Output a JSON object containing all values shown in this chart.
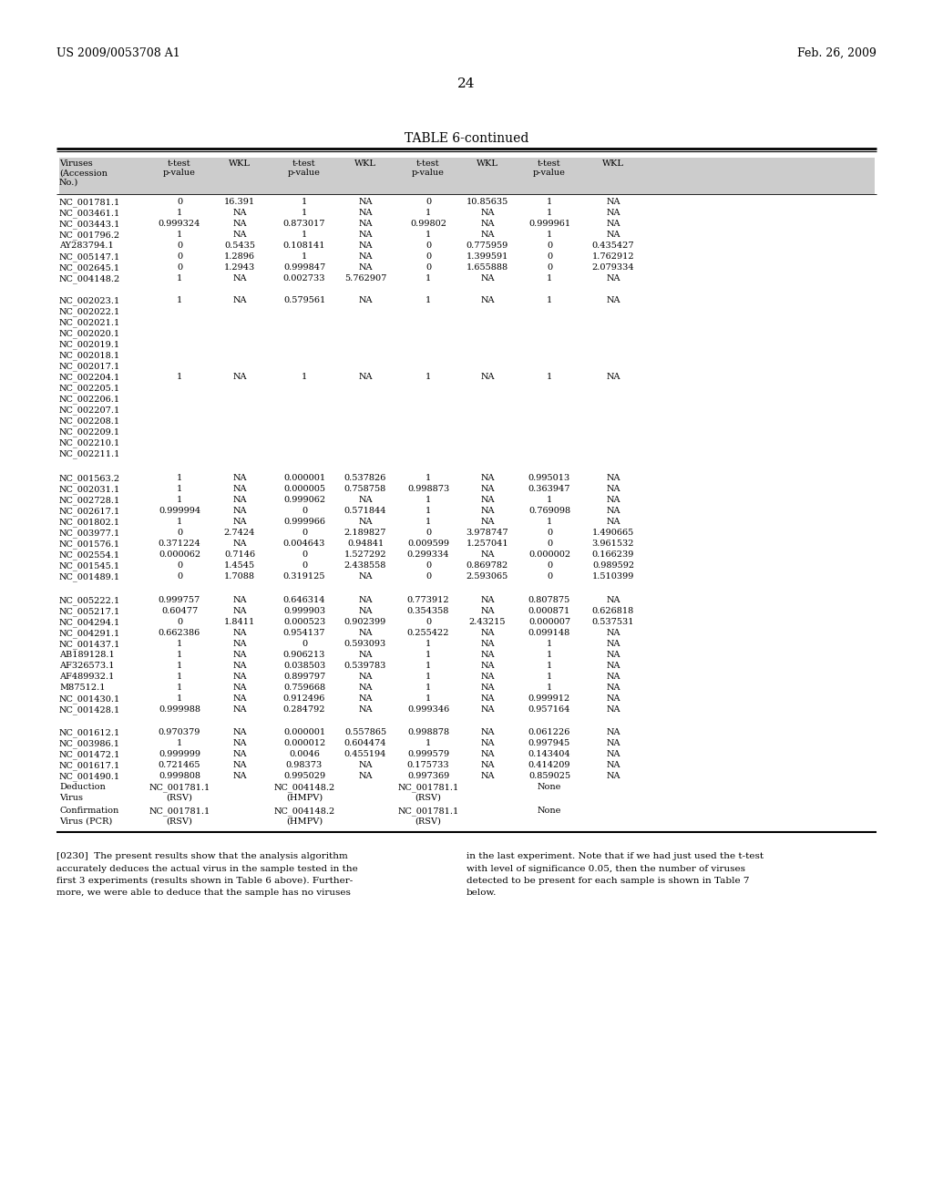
{
  "header_left": "US 2009/0053708 A1",
  "header_right": "Feb. 26, 2009",
  "page_number": "24",
  "table_title": "TABLE 6-continued",
  "sections": [
    {
      "rows": [
        [
          "NC_001781.1",
          "0",
          "16.391",
          "1",
          "NA",
          "0",
          "10.85635",
          "1",
          "NA"
        ],
        [
          "NC_003461.1",
          "1",
          "NA",
          "1",
          "NA",
          "1",
          "NA",
          "1",
          "NA"
        ],
        [
          "NC_003443.1",
          "0.999324",
          "NA",
          "0.873017",
          "NA",
          "0.99802",
          "NA",
          "0.999961",
          "NA"
        ],
        [
          "NC_001796.2",
          "1",
          "NA",
          "1",
          "NA",
          "1",
          "NA",
          "1",
          "NA"
        ],
        [
          "AY283794.1",
          "0",
          "0.5435",
          "0.108141",
          "NA",
          "0",
          "0.775959",
          "0",
          "0.435427"
        ],
        [
          "NC_005147.1",
          "0",
          "1.2896",
          "1",
          "NA",
          "0",
          "1.399591",
          "0",
          "1.762912"
        ],
        [
          "NC_002645.1",
          "0",
          "1.2943",
          "0.999847",
          "NA",
          "0",
          "1.655888",
          "0",
          "2.079334"
        ],
        [
          "NC_004148.2",
          "1",
          "NA",
          "0.002733",
          "5.762907",
          "1",
          "NA",
          "1",
          "NA"
        ]
      ]
    },
    {
      "rows": [
        [
          "NC_002023.1",
          "1",
          "NA",
          "0.579561",
          "NA",
          "1",
          "NA",
          "1",
          "NA"
        ],
        [
          "NC_002022.1",
          "",
          "",
          "",
          "",
          "",
          "",
          "",
          ""
        ],
        [
          "NC_002021.1",
          "",
          "",
          "",
          "",
          "",
          "",
          "",
          ""
        ],
        [
          "NC_002020.1",
          "",
          "",
          "",
          "",
          "",
          "",
          "",
          ""
        ],
        [
          "NC_002019.1",
          "",
          "",
          "",
          "",
          "",
          "",
          "",
          ""
        ],
        [
          "NC_002018.1",
          "",
          "",
          "",
          "",
          "",
          "",
          "",
          ""
        ],
        [
          "NC_002017.1",
          "",
          "",
          "",
          "",
          "",
          "",
          "",
          ""
        ],
        [
          "NC_002204.1",
          "1",
          "NA",
          "1",
          "NA",
          "1",
          "NA",
          "1",
          "NA"
        ],
        [
          "NC_002205.1",
          "",
          "",
          "",
          "",
          "",
          "",
          "",
          ""
        ],
        [
          "NC_002206.1",
          "",
          "",
          "",
          "",
          "",
          "",
          "",
          ""
        ],
        [
          "NC_002207.1",
          "",
          "",
          "",
          "",
          "",
          "",
          "",
          ""
        ],
        [
          "NC_002208.1",
          "",
          "",
          "",
          "",
          "",
          "",
          "",
          ""
        ],
        [
          "NC_002209.1",
          "",
          "",
          "",
          "",
          "",
          "",
          "",
          ""
        ],
        [
          "NC_002210.1",
          "",
          "",
          "",
          "",
          "",
          "",
          "",
          ""
        ],
        [
          "NC_002211.1",
          "",
          "",
          "",
          "",
          "",
          "",
          "",
          ""
        ]
      ]
    },
    {
      "rows": [
        [
          "NC_001563.2",
          "1",
          "NA",
          "0.000001",
          "0.537826",
          "1",
          "NA",
          "0.995013",
          "NA"
        ],
        [
          "NC_002031.1",
          "1",
          "NA",
          "0.000005",
          "0.758758",
          "0.998873",
          "NA",
          "0.363947",
          "NA"
        ],
        [
          "NC_002728.1",
          "1",
          "NA",
          "0.999062",
          "NA",
          "1",
          "NA",
          "1",
          "NA"
        ],
        [
          "NC_002617.1",
          "0.999994",
          "NA",
          "0",
          "0.571844",
          "1",
          "NA",
          "0.769098",
          "NA"
        ],
        [
          "NC_001802.1",
          "1",
          "NA",
          "0.999966",
          "NA",
          "1",
          "NA",
          "1",
          "NA"
        ],
        [
          "NC_003977.1",
          "0",
          "2.7424",
          "0",
          "2.189827",
          "0",
          "3.978747",
          "0",
          "1.490665"
        ],
        [
          "NC_001576.1",
          "0.371224",
          "NA",
          "0.004643",
          "0.94841",
          "0.009599",
          "1.257041",
          "0",
          "3.961532"
        ],
        [
          "NC_002554.1",
          "0.000062",
          "0.7146",
          "0",
          "1.527292",
          "0.299334",
          "NA",
          "0.000002",
          "0.166239"
        ],
        [
          "NC_001545.1",
          "0",
          "1.4545",
          "0",
          "2.438558",
          "0",
          "0.869782",
          "0",
          "0.989592"
        ],
        [
          "NC_001489.1",
          "0",
          "1.7088",
          "0.319125",
          "NA",
          "0",
          "2.593065",
          "0",
          "1.510399"
        ]
      ]
    },
    {
      "rows": [
        [
          "NC_005222.1",
          "0.999757",
          "NA",
          "0.646314",
          "NA",
          "0.773912",
          "NA",
          "0.807875",
          "NA"
        ],
        [
          "NC_005217.1",
          "0.60477",
          "NA",
          "0.999903",
          "NA",
          "0.354358",
          "NA",
          "0.000871",
          "0.626818"
        ],
        [
          "NC_004294.1",
          "0",
          "1.8411",
          "0.000523",
          "0.902399",
          "0",
          "2.43215",
          "0.000007",
          "0.537531"
        ],
        [
          "NC_004291.1",
          "0.662386",
          "NA",
          "0.954137",
          "NA",
          "0.255422",
          "NA",
          "0.099148",
          "NA"
        ],
        [
          "NC_001437.1",
          "1",
          "NA",
          "0",
          "0.593093",
          "1",
          "NA",
          "1",
          "NA"
        ],
        [
          "AB189128.1",
          "1",
          "NA",
          "0.906213",
          "NA",
          "1",
          "NA",
          "1",
          "NA"
        ],
        [
          "AF326573.1",
          "1",
          "NA",
          "0.038503",
          "0.539783",
          "1",
          "NA",
          "1",
          "NA"
        ],
        [
          "AF489932.1",
          "1",
          "NA",
          "0.899797",
          "NA",
          "1",
          "NA",
          "1",
          "NA"
        ],
        [
          "M87512.1",
          "1",
          "NA",
          "0.759668",
          "NA",
          "1",
          "NA",
          "1",
          "NA"
        ],
        [
          "NC_001430.1",
          "1",
          "NA",
          "0.912496",
          "NA",
          "1",
          "NA",
          "0.999912",
          "NA"
        ],
        [
          "NC_001428.1",
          "0.999988",
          "NA",
          "0.284792",
          "NA",
          "0.999346",
          "NA",
          "0.957164",
          "NA"
        ]
      ]
    },
    {
      "rows": [
        [
          "NC_001612.1",
          "0.970379",
          "NA",
          "0.000001",
          "0.557865",
          "0.998878",
          "NA",
          "0.061226",
          "NA"
        ],
        [
          "NC_003986.1",
          "1",
          "NA",
          "0.000012",
          "0.604474",
          "1",
          "NA",
          "0.997945",
          "NA"
        ],
        [
          "NC_001472.1",
          "0.999999",
          "NA",
          "0.0046",
          "0.455194",
          "0.999579",
          "NA",
          "0.143404",
          "NA"
        ],
        [
          "NC_001617.1",
          "0.721465",
          "NA",
          "0.98373",
          "NA",
          "0.175733",
          "NA",
          "0.414209",
          "NA"
        ],
        [
          "NC_001490.1",
          "0.999808",
          "NA",
          "0.995029",
          "NA",
          "0.997369",
          "NA",
          "0.859025",
          "NA"
        ]
      ]
    }
  ],
  "deduction_row": [
    "Deduction",
    "NC_001781.1",
    "(RSV)",
    "NC_004148.2",
    "(HMPV)",
    "NC_001781.1",
    "(RSV)",
    "None",
    ""
  ],
  "virus_row": [
    "Virus",
    "",
    "",
    "",
    "",
    "",
    "",
    "",
    ""
  ],
  "confirmation_row": [
    "Confirmation",
    "NC_001781.1",
    "(RSV)",
    "NC_004148.2",
    "(HMPV)",
    "NC_001781.1",
    "(RSV)",
    "None",
    ""
  ],
  "virus_pcr_row": [
    "Virus (PCR)",
    "",
    "",
    "",
    "",
    "",
    "",
    "",
    ""
  ],
  "footnote_left_lines": [
    "[0230]  The present results show that the analysis algorithm",
    "accurately deduces the actual virus in the sample tested in the",
    "first 3 experiments (results shown in Table 6 above). Further-",
    "more, we were able to deduce that the sample has no viruses"
  ],
  "footnote_right_lines": [
    "in the last experiment. Note that if we had just used the t-test",
    "with level of significance 0.05, then the number of viruses",
    "detected to be present for each sample is shown in Table 7",
    "below."
  ],
  "bg_color": "#ffffff"
}
